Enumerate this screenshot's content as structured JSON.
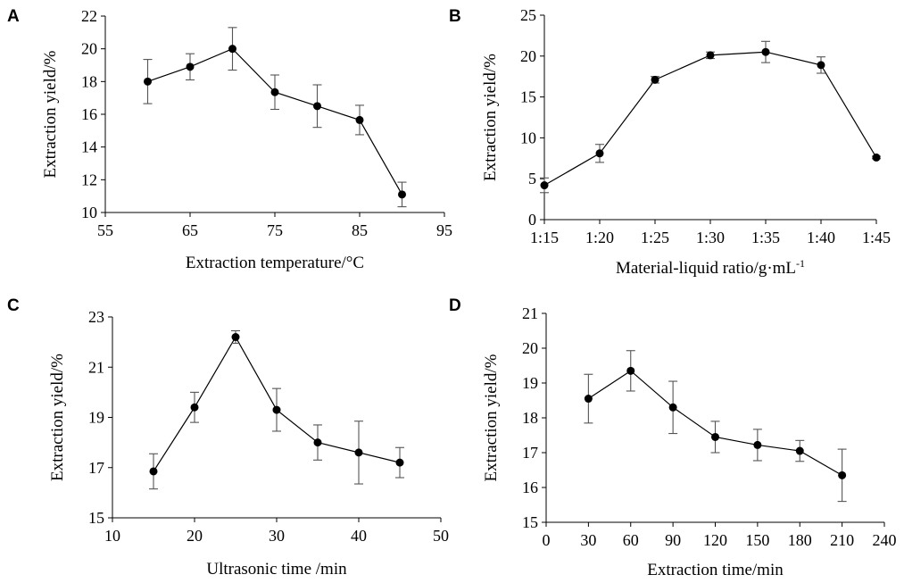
{
  "chart_data": [
    {
      "type": "line",
      "panel": "A",
      "xlabel": "Extraction temperature/°C",
      "ylabel": "Extraction yield/%",
      "xlim": [
        55,
        95
      ],
      "ylim": [
        10,
        22
      ],
      "xticks": [
        "55",
        "65",
        "75",
        "85",
        "95"
      ],
      "yticks": [
        "10",
        "12",
        "14",
        "16",
        "18",
        "20",
        "22"
      ],
      "x": [
        60,
        65,
        70,
        75,
        80,
        85,
        90
      ],
      "values": [
        18.0,
        18.9,
        20.0,
        17.35,
        16.5,
        15.65,
        11.1
      ],
      "errors": [
        1.35,
        0.8,
        1.3,
        1.05,
        1.3,
        0.9,
        0.75
      ]
    },
    {
      "type": "line",
      "panel": "B",
      "xlabel": "Material-liquid ratio/g·mL",
      "xlabel_sup": "-1",
      "ylabel": "Extraction yield/%",
      "categories": [
        "1:15",
        "1:20",
        "1:25",
        "1:30",
        "1:35",
        "1:40",
        "1:45"
      ],
      "ylim": [
        0,
        25
      ],
      "yticks": [
        "0",
        "5",
        "10",
        "15",
        "20",
        "25"
      ],
      "values": [
        4.2,
        8.1,
        17.1,
        20.1,
        20.5,
        18.9,
        7.6
      ],
      "errors": [
        0.9,
        1.1,
        0.4,
        0.4,
        1.3,
        1.0,
        0.15
      ]
    },
    {
      "type": "line",
      "panel": "C",
      "xlabel": "Ultrasonic time /min",
      "ylabel": "Extraction yield/%",
      "xlim": [
        10,
        50
      ],
      "ylim": [
        15,
        23
      ],
      "xticks": [
        "10",
        "20",
        "30",
        "40",
        "50"
      ],
      "yticks": [
        "15",
        "17",
        "19",
        "21",
        "23"
      ],
      "x": [
        15,
        20,
        25,
        30,
        35,
        40,
        45
      ],
      "values": [
        16.85,
        19.4,
        22.2,
        19.3,
        18.0,
        17.6,
        17.2
      ],
      "errors": [
        0.7,
        0.6,
        0.25,
        0.85,
        0.7,
        1.25,
        0.6
      ]
    },
    {
      "type": "line",
      "panel": "D",
      "xlabel": "Extraction time/min",
      "ylabel": "Extraction yield/%",
      "xlim": [
        0,
        240
      ],
      "ylim": [
        15,
        21
      ],
      "xticks": [
        "0",
        "30",
        "60",
        "90",
        "120",
        "150",
        "180",
        "210",
        "240"
      ],
      "yticks": [
        "15",
        "16",
        "17",
        "18",
        "19",
        "20",
        "21"
      ],
      "x": [
        30,
        60,
        90,
        120,
        150,
        180,
        210
      ],
      "values": [
        18.55,
        19.35,
        18.3,
        17.45,
        17.22,
        17.05,
        16.35
      ],
      "errors": [
        0.7,
        0.58,
        0.75,
        0.45,
        0.45,
        0.3,
        0.75
      ]
    }
  ]
}
